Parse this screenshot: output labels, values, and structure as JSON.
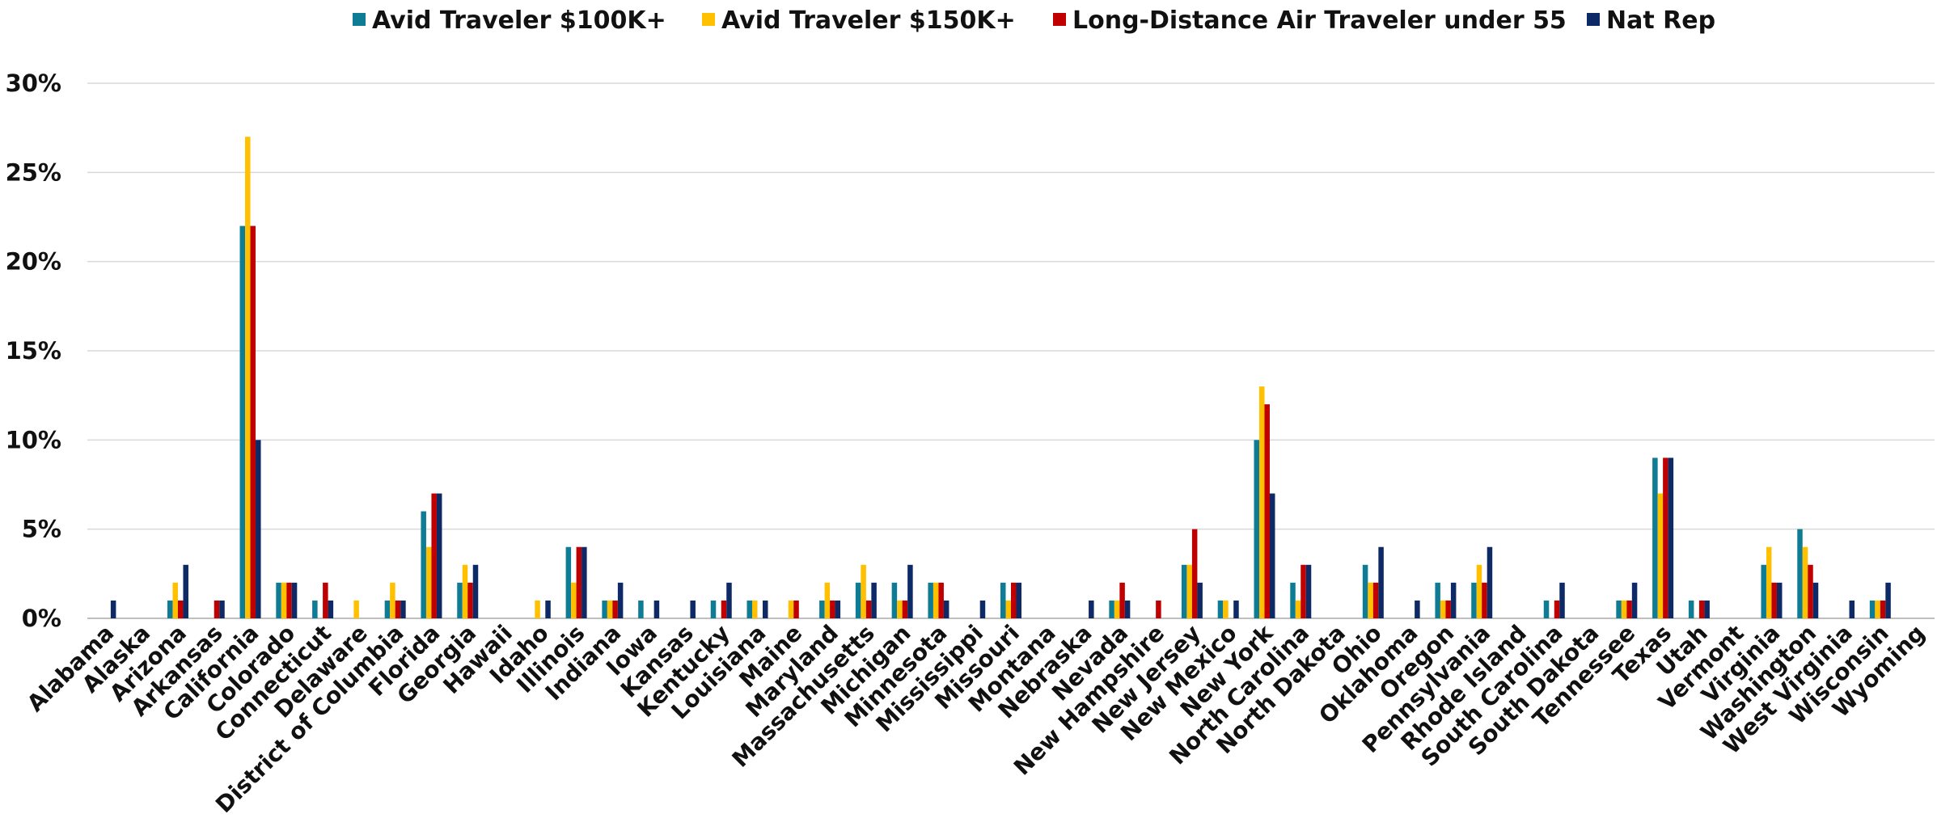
{
  "chart_data": {
    "type": "bar",
    "categories": [
      "Alabama",
      "Alaska",
      "Arizona",
      "Arkansas",
      "California",
      "Colorado",
      "Connecticut",
      "Delaware",
      "District of Columbia",
      "Florida",
      "Georgia",
      "Hawaii",
      "Idaho",
      "Illinois",
      "Indiana",
      "Iowa",
      "Kansas",
      "Kentucky",
      "Louisiana",
      "Maine",
      "Maryland",
      "Massachusetts",
      "Michigan",
      "Minnesota",
      "Mississippi",
      "Missouri",
      "Montana",
      "Nebraska",
      "Nevada",
      "New Hampshire",
      "New Jersey",
      "New Mexico",
      "New York",
      "North Carolina",
      "North Dakota",
      "Ohio",
      "Oklahoma",
      "Oregon",
      "Pennsylvania",
      "Rhode Island",
      "South Carolina",
      "South Dakota",
      "Tennessee",
      "Texas",
      "Utah",
      "Vermont",
      "Virginia",
      "Washington",
      "West Virginia",
      "Wisconsin",
      "Wyoming"
    ],
    "series": [
      {
        "name": "Avid Traveler $100K+",
        "color": "#0e7c94",
        "values": [
          0,
          0,
          1,
          0,
          22,
          2,
          1,
          0,
          1,
          6,
          2,
          0,
          0,
          4,
          1,
          1,
          0,
          1,
          1,
          0,
          1,
          2,
          2,
          2,
          0,
          2,
          0,
          0,
          1,
          0,
          3,
          1,
          10,
          2,
          0,
          3,
          0,
          2,
          2,
          0,
          1,
          0,
          1,
          9,
          1,
          0,
          3,
          5,
          0,
          1,
          0
        ]
      },
      {
        "name": "Avid Traveler $150K+",
        "color": "#ffc000",
        "values": [
          0,
          0,
          2,
          0,
          27,
          2,
          0,
          1,
          2,
          4,
          3,
          0,
          1,
          2,
          1,
          0,
          0,
          0,
          1,
          1,
          2,
          3,
          1,
          2,
          0,
          1,
          0,
          0,
          1,
          0,
          3,
          1,
          13,
          1,
          0,
          2,
          0,
          1,
          3,
          0,
          0,
          0,
          1,
          7,
          0,
          0,
          4,
          4,
          0,
          1,
          0
        ]
      },
      {
        "name": "Long-Distance Air Traveler under 55",
        "color": "#c00000",
        "values": [
          0,
          0,
          1,
          1,
          22,
          2,
          2,
          0,
          1,
          7,
          2,
          0,
          0,
          4,
          1,
          0,
          0,
          1,
          0,
          1,
          1,
          1,
          1,
          2,
          0,
          2,
          0,
          0,
          2,
          1,
          5,
          0,
          12,
          3,
          0,
          2,
          0,
          1,
          2,
          0,
          1,
          0,
          1,
          9,
          1,
          0,
          2,
          3,
          0,
          1,
          0
        ]
      },
      {
        "name": "Nat Rep",
        "color": "#0d2a66",
        "values": [
          1,
          0,
          3,
          1,
          10,
          2,
          1,
          0,
          1,
          7,
          3,
          0,
          1,
          4,
          2,
          1,
          1,
          2,
          1,
          0,
          1,
          2,
          3,
          1,
          1,
          2,
          0,
          1,
          1,
          0,
          2,
          1,
          7,
          3,
          0,
          4,
          1,
          2,
          4,
          0,
          2,
          0,
          2,
          9,
          1,
          0,
          2,
          2,
          1,
          2,
          0
        ]
      }
    ],
    "yticks": [
      "0%",
      "5%",
      "10%",
      "15%",
      "20%",
      "25%",
      "30%"
    ],
    "ylim": [
      0,
      30
    ],
    "title": "",
    "xlabel": "",
    "ylabel": "",
    "grid": true,
    "legend_position": "top"
  }
}
